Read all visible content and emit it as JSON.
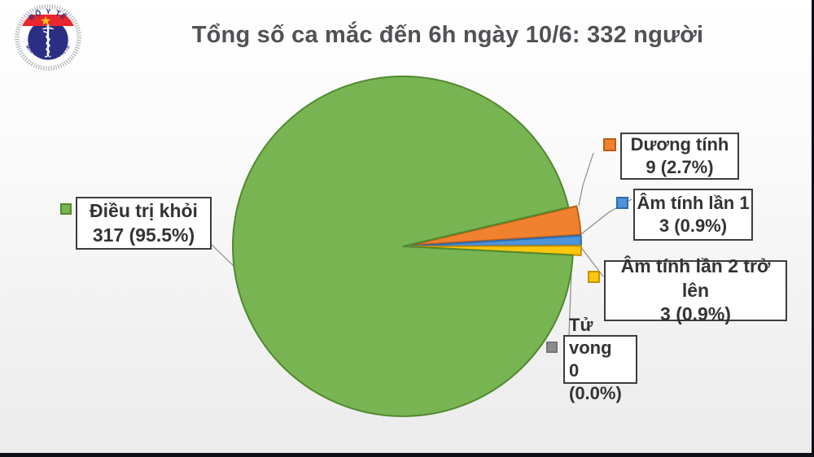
{
  "logo": {
    "top_text": "BỘ Y TẾ",
    "bottom_text": "MINISTRY OF HEALTH",
    "colors": {
      "navy": "#2b2f84",
      "red": "#e8262d",
      "star": "#f5c518"
    }
  },
  "chart_data": {
    "type": "pie",
    "title": "Tổng số ca mắc đến 6h ngày 10/6: 332 người",
    "total": 332,
    "legend_position": "callout-boxes-around-pie",
    "slices": [
      {
        "label": "Điều trị khỏi",
        "value": 317,
        "pct": 95.5,
        "stat": "317 (95.5%)",
        "color": "#78b452",
        "border": "#4f8a2f"
      },
      {
        "label": "Dương tính",
        "value": 9,
        "pct": 2.7,
        "stat": "9 (2.7%)",
        "color": "#f0812f",
        "border": "#bf5c14"
      },
      {
        "label": "Âm tính lần 1",
        "value": 3,
        "pct": 0.9,
        "stat": "3 (0.9%)",
        "color": "#4f93d8",
        "border": "#2a6db0"
      },
      {
        "label": "Âm tính lần 2 trở lên",
        "value": 3,
        "pct": 0.9,
        "stat": "3 (0.9%)",
        "color": "#ffc60b",
        "border": "#c79102"
      },
      {
        "label": "Tử vong",
        "value": 0,
        "pct": 0.0,
        "stat": "0 (0.0%)",
        "color": "#8c8c8c",
        "border": "#757575"
      }
    ]
  }
}
